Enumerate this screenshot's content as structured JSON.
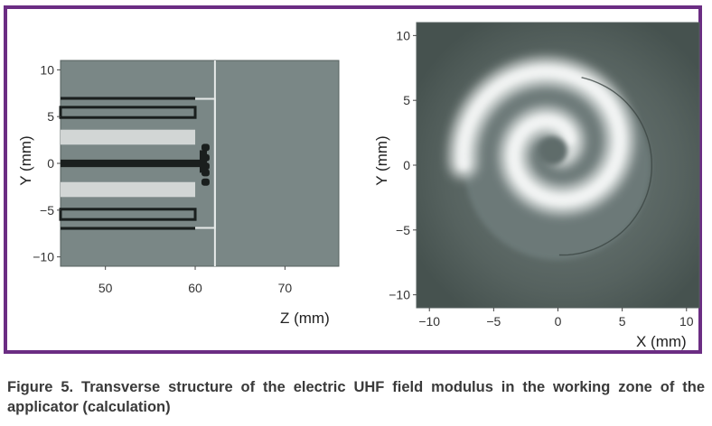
{
  "caption": "Figure 5. Transverse structure of the electric UHF field modulus in the working zone of the applicator (calculation)",
  "colors": {
    "frame": "#6b2d83",
    "plot_background": "#7a8786",
    "electrode_light": "#d2d6d5",
    "electrode_dark": "#1a1f1e",
    "boundary_line": "#e6e9e8",
    "field_low": "#3e4a48",
    "field_high": "#f2f4f3"
  },
  "chart_data": [
    {
      "type": "heatmap",
      "description_of_field": "applicator cross-section geometry",
      "xlabel": "Z (mm)",
      "ylabel": "Y (mm)",
      "xlim": [
        45,
        76
      ],
      "ylim": [
        -11,
        11
      ],
      "xticks": [
        "50",
        "60",
        "70"
      ],
      "yticks": [
        "10",
        "5",
        "0",
        "−5",
        "−10"
      ],
      "xtick_values": [
        50,
        60,
        70
      ],
      "ytick_values": [
        10,
        5,
        0,
        -5,
        -10
      ],
      "boundary_z": 62.2,
      "electrodes": [
        {
          "z0": 45,
          "z1": 60,
          "y0": 6.8,
          "y1": 7.1,
          "shade": "dark"
        },
        {
          "z0": 45,
          "z1": 60,
          "y0": 4.9,
          "y1": 6.0,
          "shade": "outline"
        },
        {
          "z0": 45,
          "z1": 60,
          "y0": 2.0,
          "y1": 3.6,
          "shade": "light"
        },
        {
          "z0": 45,
          "z1": 60.5,
          "y0": -0.4,
          "y1": 0.4,
          "shade": "dark"
        },
        {
          "z0": 45,
          "z1": 60,
          "y0": -3.6,
          "y1": -2.0,
          "shade": "light"
        },
        {
          "z0": 45,
          "z1": 60,
          "y0": -6.0,
          "y1": -4.9,
          "shade": "outline"
        },
        {
          "z0": 45,
          "z1": 60,
          "y0": -7.1,
          "y1": -6.8,
          "shade": "dark"
        }
      ]
    },
    {
      "type": "heatmap",
      "description_of_field": "spiral field modulus",
      "xlabel": "X (mm)",
      "ylabel": "Y (mm)",
      "xlim": [
        -11,
        11
      ],
      "ylim": [
        -11,
        11
      ],
      "xticks": [
        "−10",
        "−5",
        "0",
        "5",
        "10"
      ],
      "yticks": [
        "10",
        "5",
        "0",
        "−5",
        "−10"
      ],
      "xtick_values": [
        -10,
        -5,
        0,
        5,
        10
      ],
      "ytick_values": [
        10,
        5,
        0,
        -5,
        -10
      ],
      "circle_radius": 7
    }
  ]
}
